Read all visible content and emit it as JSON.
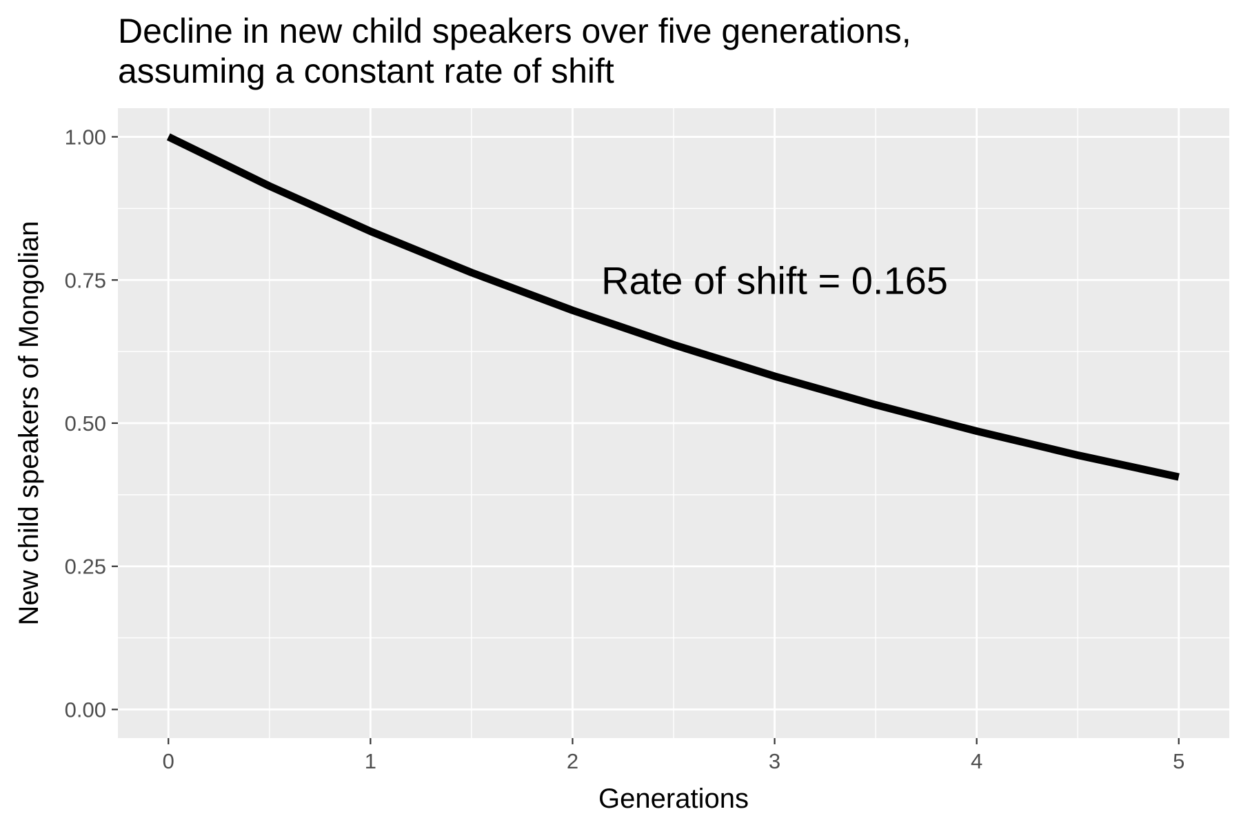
{
  "chart_data": {
    "type": "line",
    "title_lines": [
      "Decline in new child speakers over five generations,",
      "assuming a constant rate of shift"
    ],
    "xlabel": "Generations",
    "ylabel": "New child speakers of Mongolian",
    "xlim": [
      -0.25,
      5.25
    ],
    "ylim": [
      -0.05,
      1.05
    ],
    "x_ticks": [
      0,
      1,
      2,
      3,
      4,
      5
    ],
    "x_tick_labels": [
      "0",
      "1",
      "2",
      "3",
      "4",
      "5"
    ],
    "y_ticks": [
      0,
      0.25,
      0.5,
      0.75,
      1.0
    ],
    "y_tick_labels": [
      "0.00",
      "0.25",
      "0.50",
      "0.75",
      "1.00"
    ],
    "grid": true,
    "background": "#ebebeb",
    "gridline_color": "#ffffff",
    "line_color": "#000000",
    "x": [
      0,
      0.5,
      1,
      1.5,
      2,
      2.5,
      3,
      3.5,
      4,
      4.5,
      5
    ],
    "y": [
      1.0,
      0.914,
      0.835,
      0.763,
      0.697,
      0.637,
      0.582,
      0.532,
      0.486,
      0.444,
      0.406
    ],
    "annotations": [
      {
        "text": "Rate of shift = 0.165",
        "x": 3.0,
        "y": 0.75
      }
    ]
  }
}
